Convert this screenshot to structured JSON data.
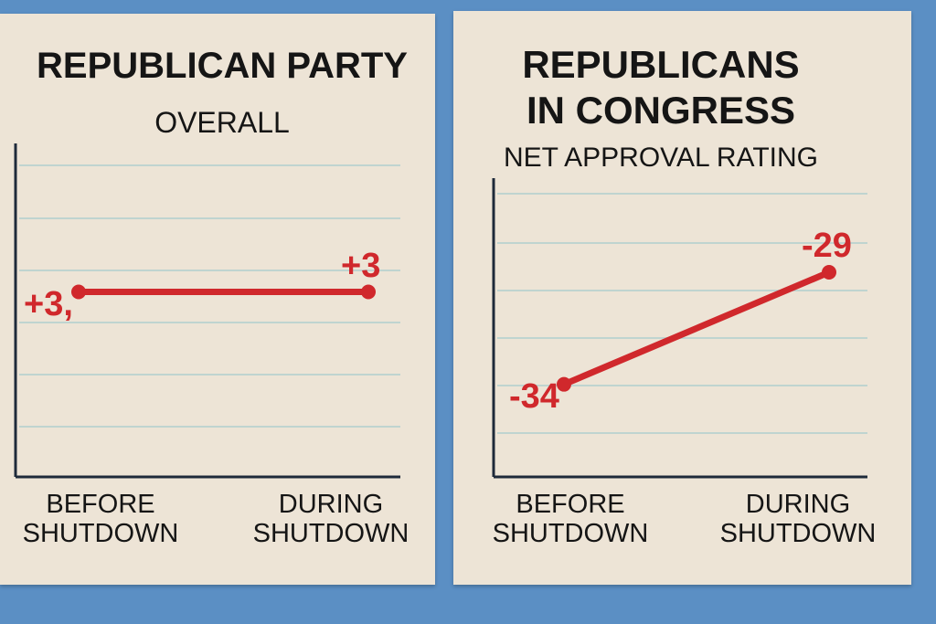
{
  "chart_data": [
    {
      "type": "line",
      "title": "REPUBLICAN PARTY",
      "subtitle": "OVERALL",
      "categories": [
        "BEFORE SHUTDOWN",
        "DURING SHUTDOWN"
      ],
      "series": [
        {
          "color": "#d0282c",
          "values": [
            3,
            3
          ],
          "value_labels": [
            "+3,",
            "+3"
          ]
        }
      ],
      "ylim": [
        0,
        6
      ]
    },
    {
      "type": "line",
      "title": "REPUBLICANS IN CONGRESS",
      "subtitle": "NET APPROVAL RATING",
      "categories": [
        "BEFORE SHUTDOWN",
        "DURING SHUTDOWN"
      ],
      "series": [
        {
          "color": "#d0282c",
          "values": [
            -34,
            -29
          ],
          "value_labels": [
            "-34",
            "-29"
          ]
        }
      ],
      "ylim": [
        -36.5,
        -24.8
      ]
    }
  ]
}
